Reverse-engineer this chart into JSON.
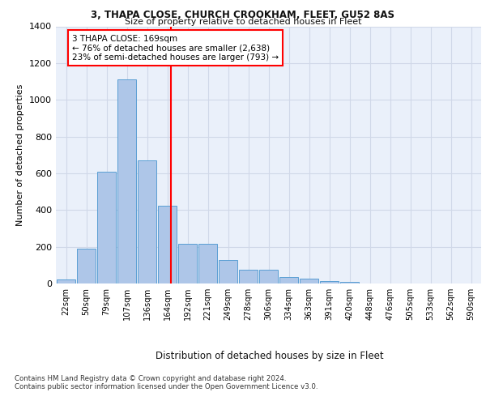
{
  "title1": "3, THAPA CLOSE, CHURCH CROOKHAM, FLEET, GU52 8AS",
  "title2": "Size of property relative to detached houses in Fleet",
  "xlabel": "Distribution of detached houses by size in Fleet",
  "ylabel": "Number of detached properties",
  "bar_labels": [
    "22sqm",
    "50sqm",
    "79sqm",
    "107sqm",
    "136sqm",
    "164sqm",
    "192sqm",
    "221sqm",
    "249sqm",
    "278sqm",
    "306sqm",
    "334sqm",
    "363sqm",
    "391sqm",
    "420sqm",
    "448sqm",
    "476sqm",
    "505sqm",
    "533sqm",
    "562sqm",
    "590sqm"
  ],
  "bar_values": [
    22,
    190,
    610,
    1110,
    670,
    425,
    215,
    215,
    130,
    75,
    75,
    35,
    28,
    15,
    10,
    0,
    0,
    0,
    0,
    0,
    0
  ],
  "bar_color": "#aec6e8",
  "bar_edge_color": "#5a9fd4",
  "grid_color": "#d0d8e8",
  "bg_color": "#eaf0fa",
  "annotation_text": "3 THAPA CLOSE: 169sqm\n← 76% of detached houses are smaller (2,638)\n23% of semi-detached houses are larger (793) →",
  "ylim": [
    0,
    1400
  ],
  "yticks": [
    0,
    200,
    400,
    600,
    800,
    1000,
    1200,
    1400
  ],
  "footer1": "Contains HM Land Registry data © Crown copyright and database right 2024.",
  "footer2": "Contains public sector information licensed under the Open Government Licence v3.0."
}
